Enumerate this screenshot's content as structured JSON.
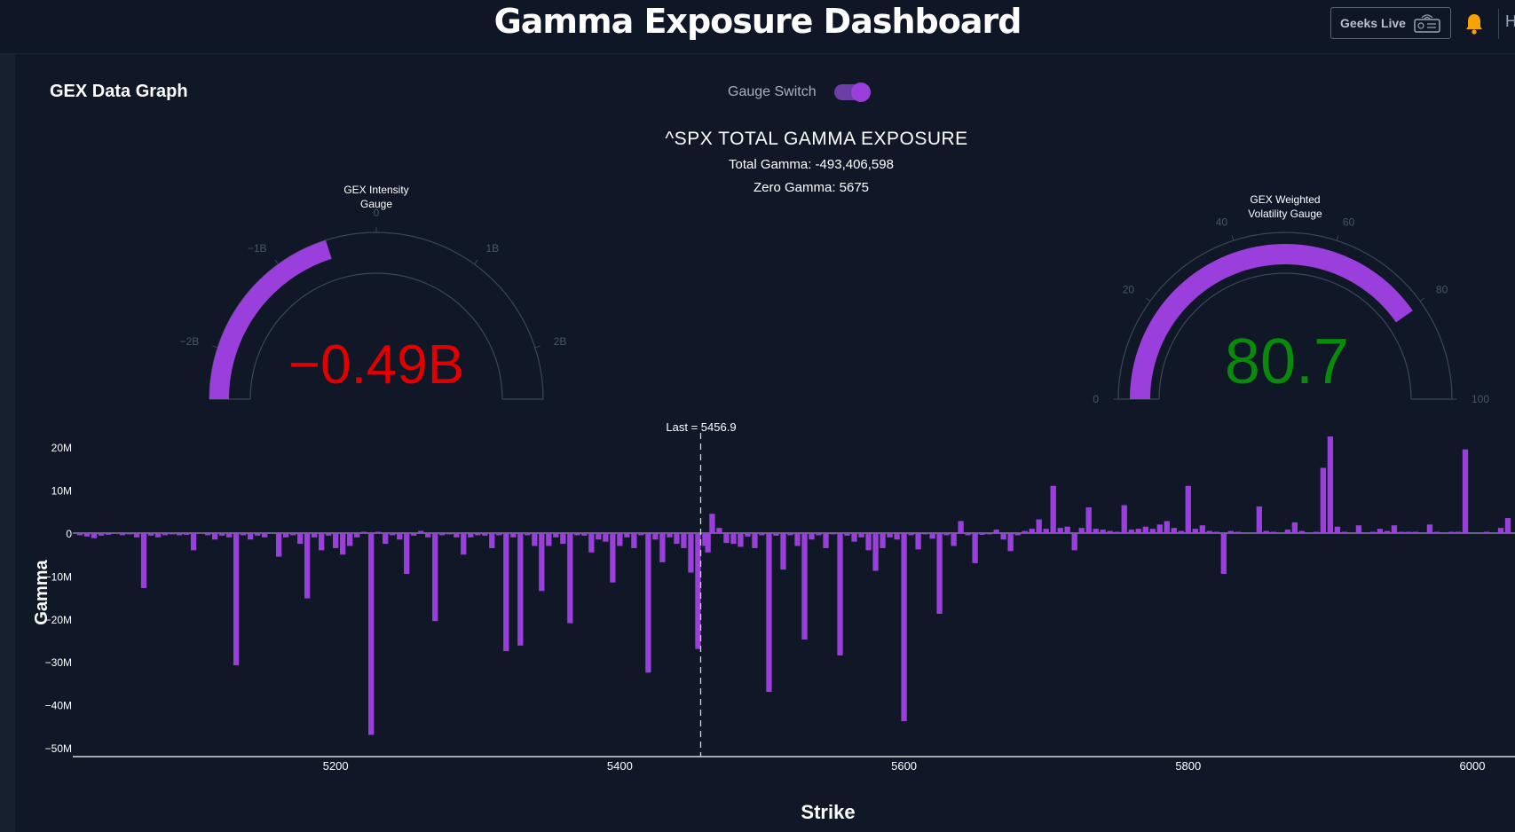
{
  "header": {
    "app_title": "Gamma Exposure Dashboard",
    "geeks_live_label": "Geeks Live",
    "truncated_text": "H"
  },
  "panel": {
    "title": "GEX Data Graph",
    "switch_label": "Gauge Switch",
    "switch_on": true
  },
  "chart_header": {
    "title": "^SPX TOTAL GAMMA EXPOSURE",
    "total_gamma": "Total Gamma: -493,406,598",
    "zero_gamma": "Zero Gamma: 5675"
  },
  "gauges": [
    {
      "title_line1": "GEX Intensity",
      "title_line2": "Gauge",
      "value": -0.49,
      "value_text": "−0.49B",
      "value_color": "#e00000",
      "min": -2.5,
      "max": 2.5,
      "ticks": [
        {
          "v": -2,
          "label": "−2B"
        },
        {
          "v": -1,
          "label": "−1B"
        },
        {
          "v": 0,
          "label": "0"
        },
        {
          "v": 1,
          "label": "1B"
        },
        {
          "v": 2,
          "label": "2B"
        }
      ]
    },
    {
      "title_line1": "GEX Weighted",
      "title_line2": "Volatility Gauge",
      "value": 80.7,
      "value_text": "80.7",
      "value_color": "#0a8a0a",
      "min": 0,
      "max": 100,
      "ticks": [
        {
          "v": 0,
          "label": "0"
        },
        {
          "v": 20,
          "label": "20"
        },
        {
          "v": 40,
          "label": "40"
        },
        {
          "v": 60,
          "label": "60"
        },
        {
          "v": 80,
          "label": "80"
        },
        {
          "v": 100,
          "label": "100"
        }
      ]
    }
  ],
  "colors": {
    "bar": "#9b3fdc",
    "background": "#101828"
  },
  "chart_data": {
    "type": "bar",
    "xlabel": "Strike",
    "ylabel": "Gamma",
    "xlim": [
      5015,
      6030
    ],
    "ylim": [
      -52,
      25
    ],
    "x_ticks": [
      5200,
      5400,
      5600,
      5800,
      6000
    ],
    "y_ticks": [
      {
        "v": 20,
        "label": "20M"
      },
      {
        "v": 10,
        "label": "10M"
      },
      {
        "v": 0,
        "label": "0"
      },
      {
        "v": -10,
        "label": "−10M"
      },
      {
        "v": -20,
        "label": "−20M"
      },
      {
        "v": -30,
        "label": "−30M"
      },
      {
        "v": -40,
        "label": "−40M"
      },
      {
        "v": -50,
        "label": "−50M"
      }
    ],
    "value_units": "millions",
    "last_label": "Last = 5456.9",
    "last_value": 5456.9,
    "bars": [
      [
        5020,
        -0.5
      ],
      [
        5025,
        -0.8
      ],
      [
        5030,
        -1.2
      ],
      [
        5035,
        -0.6
      ],
      [
        5040,
        -0.4
      ],
      [
        5050,
        -0.5
      ],
      [
        5055,
        -0.3
      ],
      [
        5060,
        -1
      ],
      [
        5065,
        -12.8
      ],
      [
        5070,
        -0.6
      ],
      [
        5075,
        -1
      ],
      [
        5080,
        -0.5
      ],
      [
        5085,
        -0.3
      ],
      [
        5090,
        -0.5
      ],
      [
        5095,
        -0.4
      ],
      [
        5100,
        -4
      ],
      [
        5110,
        -0.5
      ],
      [
        5115,
        -1.5
      ],
      [
        5120,
        -0.6
      ],
      [
        5125,
        -1
      ],
      [
        5130,
        -30.8
      ],
      [
        5135,
        -0.5
      ],
      [
        5140,
        -1.5
      ],
      [
        5145,
        -0.6
      ],
      [
        5150,
        -1
      ],
      [
        5160,
        -5.5
      ],
      [
        5165,
        -1
      ],
      [
        5170,
        -0.5
      ],
      [
        5175,
        -2.5
      ],
      [
        5180,
        -15.2
      ],
      [
        5185,
        -1
      ],
      [
        5190,
        -4
      ],
      [
        5195,
        -0.6
      ],
      [
        5200,
        -3.5
      ],
      [
        5205,
        -5
      ],
      [
        5210,
        -3
      ],
      [
        5215,
        -1
      ],
      [
        5220,
        0.3
      ],
      [
        5225,
        -47
      ],
      [
        5230,
        0.3
      ],
      [
        5235,
        -2.5
      ],
      [
        5240,
        -0.5
      ],
      [
        5245,
        -1.5
      ],
      [
        5250,
        -9.5
      ],
      [
        5255,
        -0.6
      ],
      [
        5260,
        0.5
      ],
      [
        5265,
        -1
      ],
      [
        5270,
        -20.5
      ],
      [
        5275,
        -0.5
      ],
      [
        5280,
        -0.3
      ],
      [
        5285,
        -1
      ],
      [
        5290,
        -5
      ],
      [
        5295,
        -1
      ],
      [
        5300,
        -0.5
      ],
      [
        5305,
        -0.6
      ],
      [
        5310,
        -3.5
      ],
      [
        5315,
        -0.5
      ],
      [
        5320,
        -27.5
      ],
      [
        5325,
        -1
      ],
      [
        5330,
        -26.2
      ],
      [
        5335,
        -0.5
      ],
      [
        5340,
        -3
      ],
      [
        5345,
        -13.5
      ],
      [
        5350,
        -3
      ],
      [
        5355,
        -1
      ],
      [
        5360,
        -2.5
      ],
      [
        5365,
        -21
      ],
      [
        5370,
        -0.5
      ],
      [
        5375,
        -0.6
      ],
      [
        5380,
        -4.5
      ],
      [
        5385,
        -1.5
      ],
      [
        5390,
        -2
      ],
      [
        5395,
        -11.5
      ],
      [
        5400,
        -3
      ],
      [
        5405,
        -1
      ],
      [
        5410,
        -3.5
      ],
      [
        5415,
        -0.5
      ],
      [
        5420,
        -32.5
      ],
      [
        5425,
        -1.5
      ],
      [
        5430,
        -6.8
      ],
      [
        5435,
        -1
      ],
      [
        5440,
        -2.5
      ],
      [
        5445,
        -3.5
      ],
      [
        5450,
        -9.2
      ],
      [
        5455,
        -27
      ],
      [
        5460,
        -3
      ],
      [
        5462,
        -4.5
      ],
      [
        5465,
        4.5
      ],
      [
        5470,
        1.2
      ],
      [
        5475,
        -2.3
      ],
      [
        5480,
        -2.5
      ],
      [
        5485,
        -3.2
      ],
      [
        5490,
        -0.8
      ],
      [
        5495,
        -3.5
      ],
      [
        5500,
        -0.5
      ],
      [
        5505,
        -37
      ],
      [
        5510,
        -0.6
      ],
      [
        5515,
        -8.5
      ],
      [
        5520,
        -0.5
      ],
      [
        5525,
        -3
      ],
      [
        5530,
        -24.8
      ],
      [
        5535,
        -1.5
      ],
      [
        5540,
        -0.5
      ],
      [
        5545,
        -3.5
      ],
      [
        5550,
        -0.3
      ],
      [
        5555,
        -28.5
      ],
      [
        5560,
        -0.6
      ],
      [
        5565,
        -2
      ],
      [
        5570,
        -1
      ],
      [
        5575,
        -4
      ],
      [
        5580,
        -8.8
      ],
      [
        5585,
        -3.5
      ],
      [
        5590,
        -1
      ],
      [
        5595,
        -1.5
      ],
      [
        5600,
        -43.8
      ],
      [
        5605,
        -0.5
      ],
      [
        5610,
        -3.8
      ],
      [
        5615,
        -0.3
      ],
      [
        5620,
        -1.3
      ],
      [
        5625,
        -18.8
      ],
      [
        5630,
        -0.5
      ],
      [
        5635,
        -3
      ],
      [
        5640,
        2.8
      ],
      [
        5645,
        -0.5
      ],
      [
        5650,
        -7
      ],
      [
        5655,
        -0.4
      ],
      [
        5660,
        -0.3
      ],
      [
        5665,
        0.8
      ],
      [
        5670,
        -1.5
      ],
      [
        5675,
        -4.2
      ],
      [
        5680,
        -0.5
      ],
      [
        5685,
        0.5
      ],
      [
        5690,
        1
      ],
      [
        5695,
        3.2
      ],
      [
        5700,
        1
      ],
      [
        5705,
        11
      ],
      [
        5710,
        1.2
      ],
      [
        5715,
        1.5
      ],
      [
        5720,
        -4
      ],
      [
        5725,
        1.2
      ],
      [
        5730,
        6
      ],
      [
        5735,
        1
      ],
      [
        5740,
        0.8
      ],
      [
        5745,
        0.5
      ],
      [
        5750,
        0.3
      ],
      [
        5755,
        6.5
      ],
      [
        5760,
        0.8
      ],
      [
        5765,
        1
      ],
      [
        5770,
        1.5
      ],
      [
        5775,
        1
      ],
      [
        5780,
        2
      ],
      [
        5785,
        2.8
      ],
      [
        5790,
        1.2
      ],
      [
        5795,
        0.5
      ],
      [
        5800,
        11
      ],
      [
        5805,
        1
      ],
      [
        5810,
        1.8
      ],
      [
        5815,
        0.5
      ],
      [
        5820,
        0.3
      ],
      [
        5825,
        -9.5
      ],
      [
        5830,
        0.5
      ],
      [
        5835,
        0.3
      ],
      [
        5850,
        6.2
      ],
      [
        5855,
        0.5
      ],
      [
        5860,
        0.3
      ],
      [
        5870,
        0.8
      ],
      [
        5875,
        2.5
      ],
      [
        5880,
        0.5
      ],
      [
        5890,
        0.3
      ],
      [
        5895,
        15.2
      ],
      [
        5900,
        22.5
      ],
      [
        5905,
        1.5
      ],
      [
        5910,
        0.3
      ],
      [
        5920,
        1.8
      ],
      [
        5930,
        0.3
      ],
      [
        5935,
        1
      ],
      [
        5940,
        0.5
      ],
      [
        5945,
        1.8
      ],
      [
        5950,
        0.3
      ],
      [
        5955,
        0.3
      ],
      [
        5960,
        0.3
      ],
      [
        5970,
        2
      ],
      [
        5975,
        0.3
      ],
      [
        5985,
        0.3
      ],
      [
        5990,
        0.3
      ],
      [
        5995,
        19.5
      ],
      [
        6010,
        0.3
      ],
      [
        6020,
        1.2
      ],
      [
        6025,
        3.5
      ]
    ]
  }
}
